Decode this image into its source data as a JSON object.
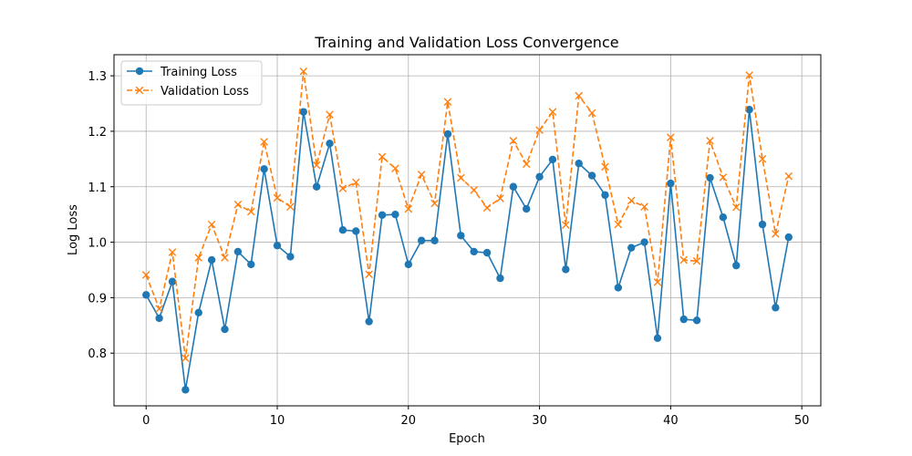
{
  "chart_data": {
    "type": "line",
    "title": "Training and Validation Loss Convergence",
    "xlabel": "Epoch",
    "ylabel": "Log Loss",
    "xlim": [
      -2.45,
      51.45
    ],
    "ylim": [
      0.705,
      1.338
    ],
    "x_ticks": [
      0,
      10,
      20,
      30,
      40,
      50
    ],
    "y_ticks": [
      0.8,
      0.9,
      1.0,
      1.1,
      1.2,
      1.3
    ],
    "grid": true,
    "legend_position": "top-left",
    "x": [
      0,
      1,
      2,
      3,
      4,
      5,
      6,
      7,
      8,
      9,
      10,
      11,
      12,
      13,
      14,
      15,
      16,
      17,
      18,
      19,
      20,
      21,
      22,
      23,
      24,
      25,
      26,
      27,
      28,
      29,
      30,
      31,
      32,
      33,
      34,
      35,
      36,
      37,
      38,
      39,
      40,
      41,
      42,
      43,
      44,
      45,
      46,
      47,
      48,
      49
    ],
    "series": [
      {
        "name": "Training Loss",
        "color": "#1f77b4",
        "marker": "circle",
        "linestyle": "solid",
        "values": [
          0.905,
          0.863,
          0.929,
          0.734,
          0.873,
          0.968,
          0.843,
          0.983,
          0.96,
          1.132,
          0.994,
          0.974,
          1.235,
          1.1,
          1.178,
          1.022,
          1.02,
          0.857,
          1.049,
          1.05,
          0.96,
          1.003,
          1.003,
          1.195,
          1.012,
          0.983,
          0.981,
          0.935,
          1.1,
          1.06,
          1.118,
          1.149,
          0.951,
          1.142,
          1.12,
          1.085,
          0.918,
          0.99,
          1.0,
          0.827,
          1.106,
          0.861,
          0.859,
          1.116,
          1.045,
          0.958,
          1.239,
          1.032,
          0.882,
          1.009
        ]
      },
      {
        "name": "Validation Loss",
        "color": "#ff7f0e",
        "marker": "x",
        "linestyle": "dashed",
        "values": [
          0.941,
          0.88,
          0.982,
          0.791,
          0.972,
          1.032,
          0.972,
          1.068,
          1.055,
          1.181,
          1.08,
          1.064,
          1.308,
          1.139,
          1.23,
          1.097,
          1.108,
          0.942,
          1.154,
          1.133,
          1.06,
          1.122,
          1.07,
          1.253,
          1.116,
          1.094,
          1.062,
          1.079,
          1.183,
          1.141,
          1.202,
          1.235,
          1.031,
          1.264,
          1.233,
          1.136,
          1.032,
          1.075,
          1.064,
          0.928,
          1.189,
          0.968,
          0.966,
          1.183,
          1.117,
          1.063,
          1.301,
          1.15,
          1.015,
          1.119
        ]
      }
    ]
  }
}
